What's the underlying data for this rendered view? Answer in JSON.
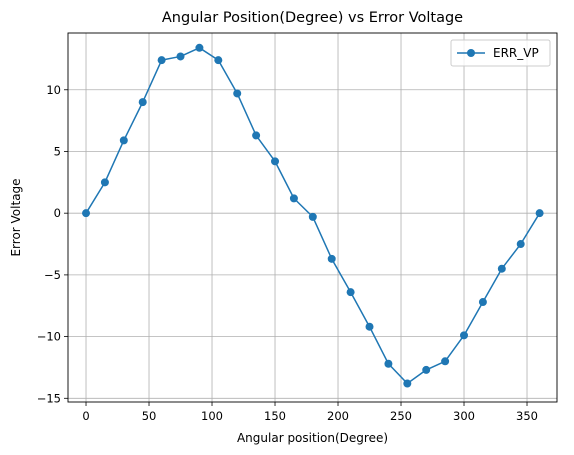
{
  "chart_data": {
    "type": "line",
    "title": "Angular Position(Degree) vs Error Voltage",
    "xlabel": "Angular position(Degree)",
    "ylabel": "Error Voltage",
    "xlim": [
      -14.3,
      373.8
    ],
    "ylim": [
      -15.3,
      14.6
    ],
    "xticks": [
      0,
      50,
      100,
      150,
      200,
      250,
      300,
      350
    ],
    "yticks": [
      -15,
      -10,
      -5,
      0,
      5,
      10
    ],
    "xtick_labels": [
      "0",
      "50",
      "100",
      "150",
      "200",
      "250",
      "300",
      "350"
    ],
    "ytick_labels": [
      "−15",
      "−10",
      "−5",
      "0",
      "5",
      "10"
    ],
    "grid": true,
    "legend_position": "upper right",
    "series": [
      {
        "name": "ERR_VP",
        "color": "#1f77b4",
        "marker": "circle",
        "x": [
          0,
          15,
          30,
          45,
          60,
          75,
          90,
          105,
          120,
          135,
          150,
          165,
          180,
          195,
          210,
          225,
          240,
          255,
          270,
          285,
          300,
          315,
          330,
          345,
          360
        ],
        "y": [
          0.0,
          2.5,
          5.9,
          9.0,
          12.4,
          12.7,
          13.4,
          12.4,
          9.7,
          6.3,
          4.2,
          1.2,
          -0.3,
          -3.7,
          -6.4,
          -9.2,
          -12.2,
          -13.8,
          -12.7,
          -12.0,
          -9.9,
          -7.2,
          -4.5,
          -2.5,
          0.0
        ]
      }
    ]
  }
}
